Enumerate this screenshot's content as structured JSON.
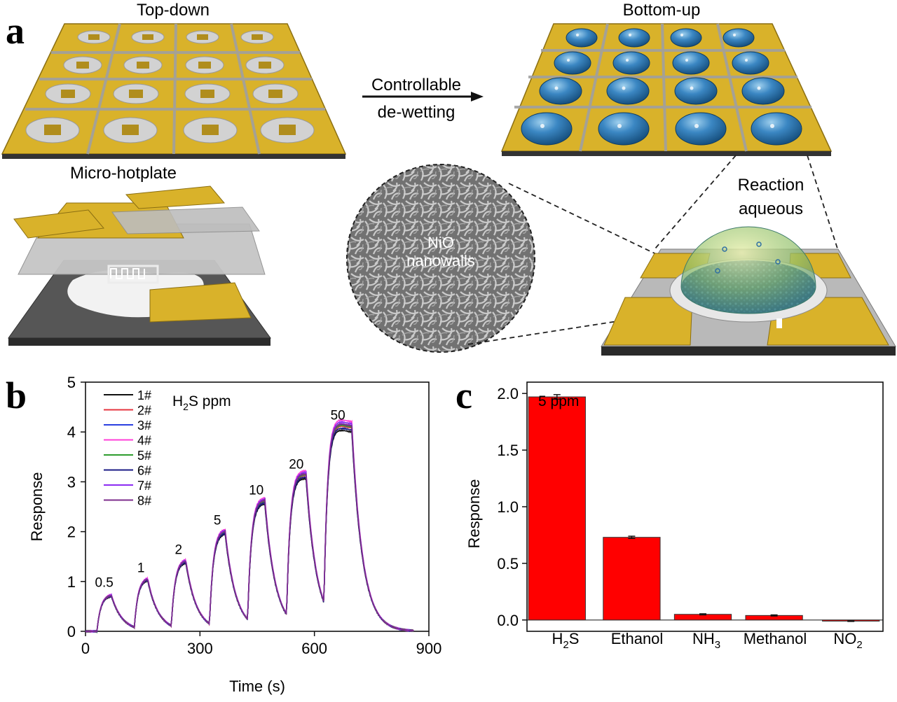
{
  "panel_a": {
    "letter": "a",
    "top_down_label": "Top-down",
    "bottom_up_label": "Bottom-up",
    "arrow_label_line1": "Controllable",
    "arrow_label_line2": "de-wetting",
    "micro_hotplate_label": "Micro-hotplate",
    "sem_label_line1": "NiO",
    "sem_label_line2": "nanowalls",
    "reaction_label_line1": "Reaction",
    "reaction_label_line2": "aqueous",
    "colors": {
      "gold": "#dcb72c",
      "silver": "#c9c9c9",
      "dark": "#555555",
      "dome": "#2f6fa3"
    }
  },
  "chart_data": [
    {
      "panel": "b",
      "type": "line",
      "title": "",
      "annotation": "H2S ppm",
      "xlabel": "Time (s)",
      "ylabel": "Response",
      "xlim": [
        0,
        900
      ],
      "ylim": [
        0,
        5
      ],
      "xticks": [
        0,
        300,
        600,
        900
      ],
      "yticks": [
        0,
        1,
        2,
        3,
        4,
        5
      ],
      "pulses": [
        {
          "label": "0.5",
          "on": 30,
          "off": 68,
          "peak": 0.72
        },
        {
          "label": "1",
          "on": 128,
          "off": 163,
          "peak": 1.02
        },
        {
          "label": "2",
          "on": 225,
          "off": 263,
          "peak": 1.38
        },
        {
          "label": "5",
          "on": 325,
          "off": 366,
          "peak": 1.97
        },
        {
          "label": "10",
          "on": 425,
          "off": 470,
          "peak": 2.58
        },
        {
          "label": "20",
          "on": 527,
          "off": 578,
          "peak": 3.1
        },
        {
          "label": "50",
          "on": 625,
          "off": 698,
          "peak": 4.08
        }
      ],
      "series": [
        {
          "name": "1#",
          "color": "#111111",
          "scale": 0.97
        },
        {
          "name": "2#",
          "color": "#e5353f",
          "scale": 0.99
        },
        {
          "name": "3#",
          "color": "#2a3fe0",
          "scale": 1.0
        },
        {
          "name": "4#",
          "color": "#ff3fd8",
          "scale": 1.02
        },
        {
          "name": "5#",
          "color": "#2e9d2e",
          "scale": 0.995
        },
        {
          "name": "6#",
          "color": "#1b1b86",
          "scale": 0.98
        },
        {
          "name": "7#",
          "color": "#8c2cf2",
          "scale": 1.01
        },
        {
          "name": "8#",
          "color": "#7d2e8c",
          "scale": 1.0
        }
      ]
    },
    {
      "panel": "c",
      "type": "bar",
      "title": "",
      "annotation": "5 ppm",
      "xlabel": "",
      "ylabel": "Response",
      "ylim": [
        -0.1,
        2.1
      ],
      "yticks": [
        0.0,
        0.5,
        1.0,
        1.5,
        2.0
      ],
      "ytick_labels": [
        "0.0",
        "0.5",
        "1.0",
        "1.5",
        "2.0"
      ],
      "categories": [
        "H2S",
        "Ethanol",
        "NH3",
        "Methanol",
        "NO2"
      ],
      "values": [
        1.97,
        0.73,
        0.05,
        0.04,
        -0.01
      ],
      "errors": [
        0.02,
        0.01,
        0.005,
        0.005,
        0.003
      ],
      "bar_color": "#ff0000"
    }
  ]
}
